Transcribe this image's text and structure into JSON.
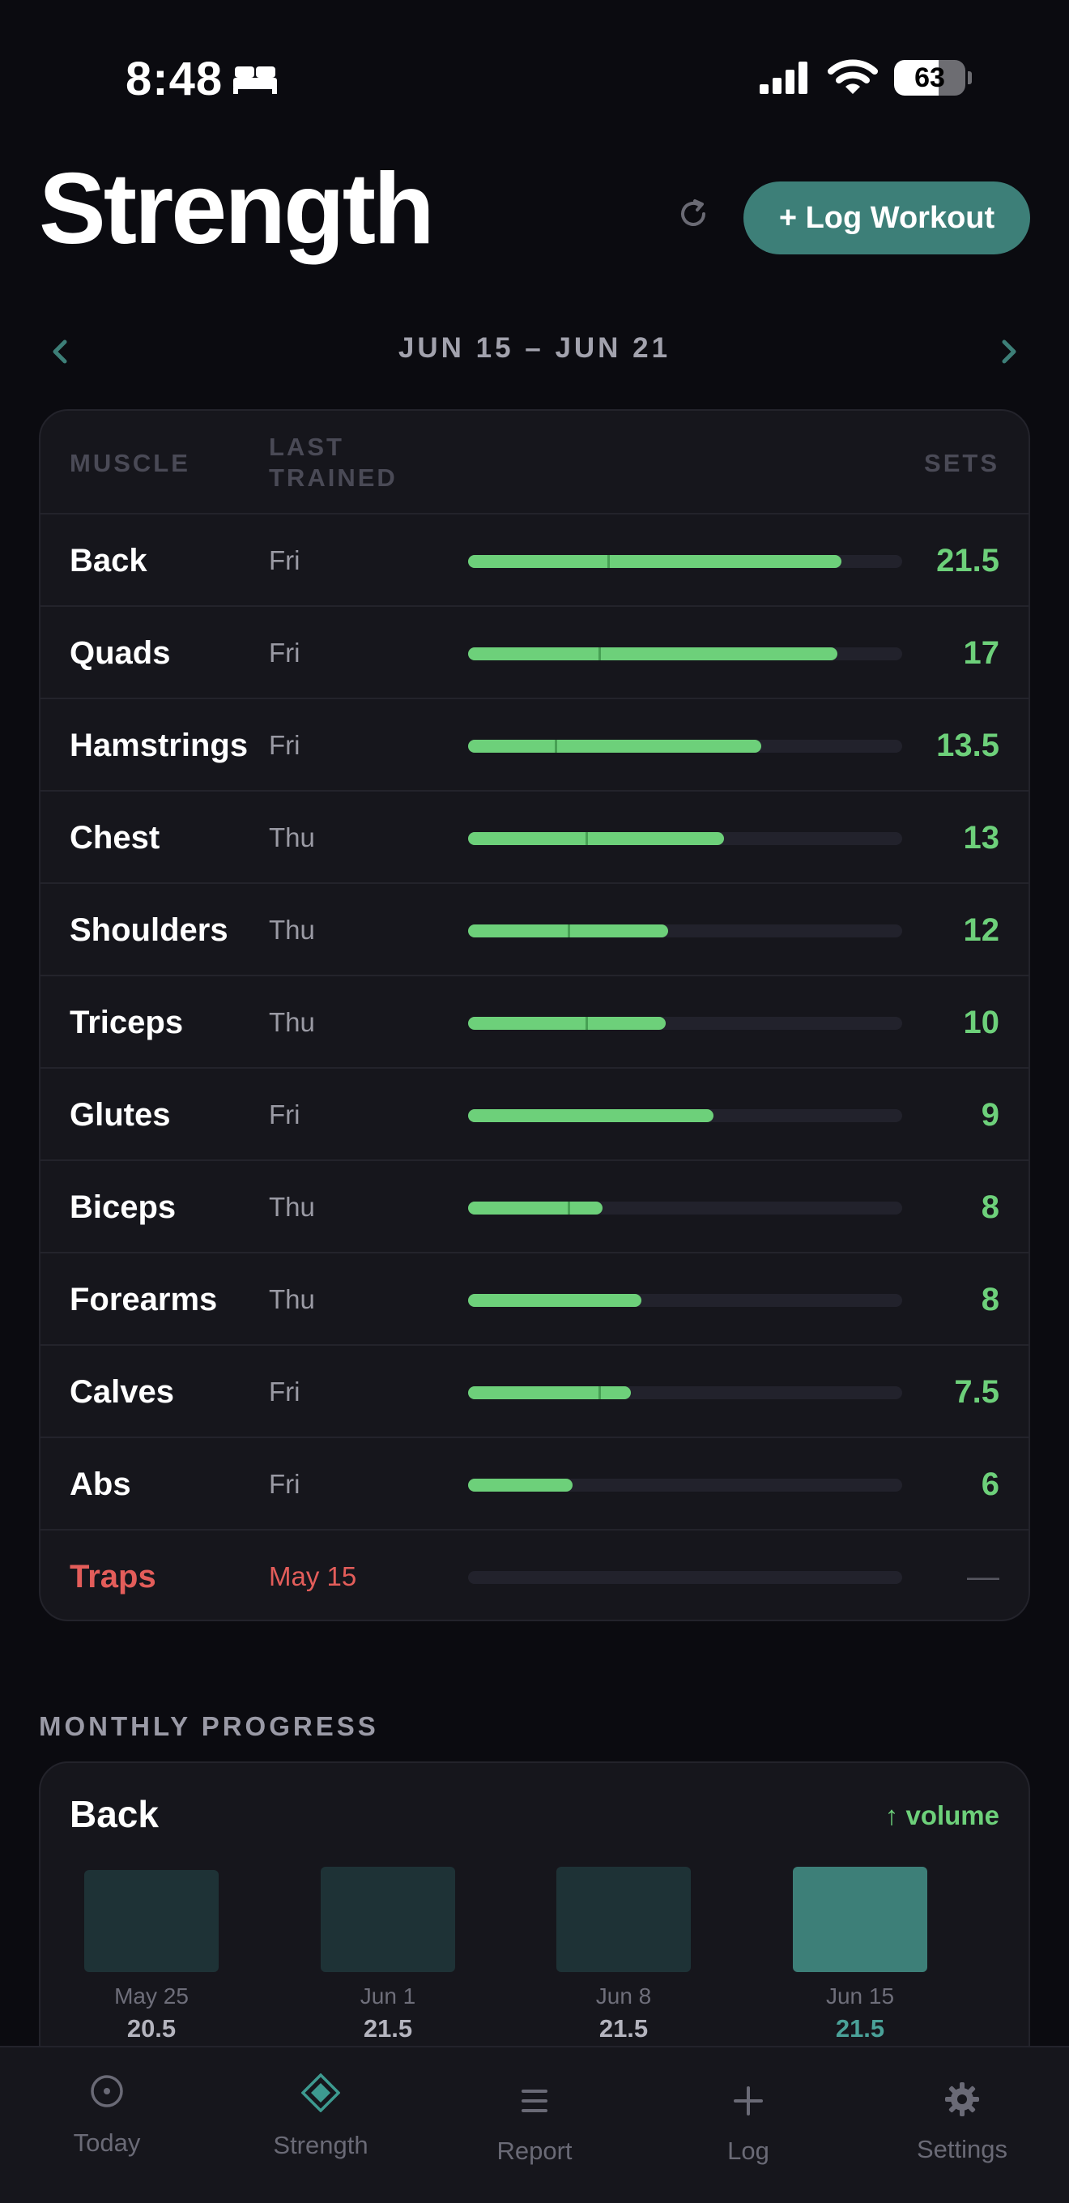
{
  "status_bar": {
    "time": "8:48",
    "battery_percent": "63",
    "battery_level": 0.63,
    "icons": [
      "bed-icon",
      "cellular-signal-icon",
      "wifi-icon",
      "battery-icon"
    ]
  },
  "header": {
    "title": "Strength",
    "log_button_label": "+ Log Workout",
    "refresh_icon": "refresh-icon"
  },
  "week_nav": {
    "range": "JUN 15 – JUN 21",
    "prev_icon": "chevron-left-icon",
    "next_icon": "chevron-right-icon"
  },
  "table": {
    "headers": {
      "muscle": "MUSCLE",
      "last_trained": "LAST TRAINED",
      "sets": "SETS"
    },
    "rows": [
      {
        "muscle": "Back",
        "last": "Fri",
        "sets": "21.5",
        "fill": 0.86,
        "marker": 0.32
      },
      {
        "muscle": "Quads",
        "last": "Fri",
        "sets": "17",
        "fill": 0.85,
        "marker": 0.3
      },
      {
        "muscle": "Hamstrings",
        "last": "Fri",
        "sets": "13.5",
        "fill": 0.675,
        "marker": 0.2
      },
      {
        "muscle": "Chest",
        "last": "Thu",
        "sets": "13",
        "fill": 0.59,
        "marker": 0.27
      },
      {
        "muscle": "Shoulders",
        "last": "Thu",
        "sets": "12",
        "fill": 0.46,
        "marker": 0.23
      },
      {
        "muscle": "Triceps",
        "last": "Thu",
        "sets": "10",
        "fill": 0.455,
        "marker": 0.27
      },
      {
        "muscle": "Glutes",
        "last": "Fri",
        "sets": "9",
        "fill": 0.565,
        "marker": null
      },
      {
        "muscle": "Biceps",
        "last": "Thu",
        "sets": "8",
        "fill": 0.31,
        "marker": 0.23
      },
      {
        "muscle": "Forearms",
        "last": "Thu",
        "sets": "8",
        "fill": 0.4,
        "marker": null
      },
      {
        "muscle": "Calves",
        "last": "Fri",
        "sets": "7.5",
        "fill": 0.375,
        "marker": 0.3
      },
      {
        "muscle": "Abs",
        "last": "Fri",
        "sets": "6",
        "fill": 0.24,
        "marker": null
      },
      {
        "muscle": "Traps",
        "last": "May 15",
        "sets": "—",
        "fill": 0,
        "marker": null,
        "alert": true
      }
    ]
  },
  "monthly_progress": {
    "section_label": "MONTHLY PROGRESS",
    "title": "Back",
    "trend": "↑ volume",
    "weeks": [
      {
        "label": "May 25",
        "value": "20.5",
        "current": false
      },
      {
        "label": "Jun 1",
        "value": "21.5",
        "current": false
      },
      {
        "label": "Jun 8",
        "value": "21.5",
        "current": false
      },
      {
        "label": "Jun 15",
        "value": "21.5",
        "current": true
      }
    ]
  },
  "tabs": [
    {
      "label": "Today",
      "icon": "target-icon",
      "active": false
    },
    {
      "label": "Strength",
      "icon": "diamond-icon",
      "active": true
    },
    {
      "label": "Report",
      "icon": "list-icon",
      "active": false
    },
    {
      "label": "Log",
      "icon": "plus-icon",
      "active": false
    },
    {
      "label": "Settings",
      "icon": "gear-icon",
      "active": false
    }
  ],
  "colors": {
    "background": "#0b0b10",
    "card": "#16161c",
    "accent_teal": "#3d7f78",
    "bar_green": "#6dd07a",
    "alert_red": "#e35d5a"
  }
}
